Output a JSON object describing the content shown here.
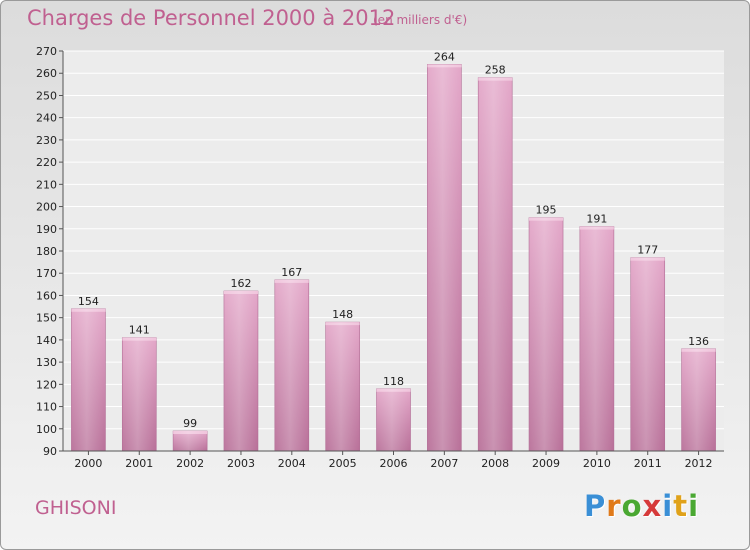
{
  "header": {
    "title": "Charges de Personnel 2000 à 2012",
    "unit": "(en milliers d'€)"
  },
  "footer": {
    "place": "GHISONI",
    "logo": [
      "P",
      "r",
      "o",
      "x",
      "i",
      "t",
      "i"
    ],
    "logo_colors": [
      "#3a8fd6",
      "#e07a1a",
      "#4aa832",
      "#d63a3a",
      "#3a8fd6",
      "#e0a21a",
      "#4aa832"
    ]
  },
  "chart_data": {
    "type": "bar",
    "categories": [
      "2000",
      "2001",
      "2002",
      "2003",
      "2004",
      "2005",
      "2006",
      "2007",
      "2008",
      "2009",
      "2010",
      "2011",
      "2012"
    ],
    "values": [
      154,
      141,
      99,
      162,
      167,
      148,
      118,
      264,
      258,
      195,
      191,
      177,
      136
    ],
    "title": "Charges de Personnel 2000 à 2012",
    "ylim": [
      90,
      270
    ],
    "ytick_step": 10,
    "grid": true,
    "bar_color": "#d88ab4"
  }
}
